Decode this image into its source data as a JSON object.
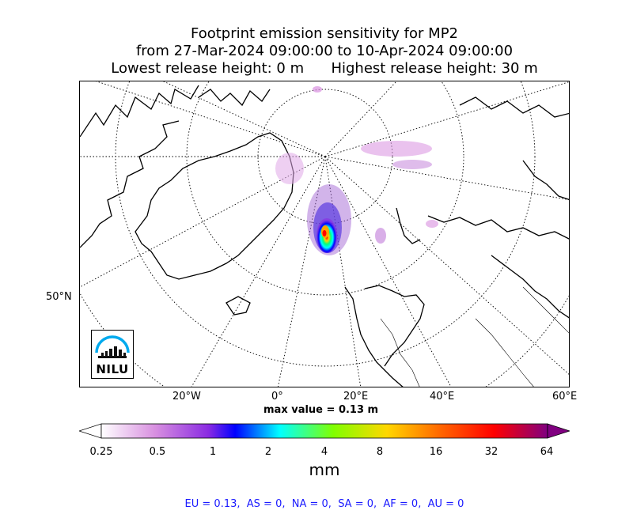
{
  "title": {
    "line1": "Footprint emission sensitivity for MP2",
    "line2": "from 27-Mar-2024 09:00:00 to 10-Apr-2024 09:00:00",
    "line3": "Lowest release height: 0 m      Highest release height: 30 m"
  },
  "map": {
    "projection": "north-polar-stereographic",
    "lon_labels": [
      "20°W",
      "0°",
      "20°E",
      "40°E",
      "60°E"
    ],
    "lat_labels": [
      "50°N"
    ],
    "grid_style": "dotted",
    "plume_location": "Svalbard / Barents Sea region"
  },
  "max_value": "max value = 0.13 m",
  "colorbar": {
    "ticks": [
      "0.25",
      "0.5",
      "1",
      "2",
      "4",
      "8",
      "16",
      "32",
      "64"
    ],
    "unit": "mm",
    "colors": [
      "#ffffff",
      "#d890e0",
      "#8a2be2",
      "#0000ff",
      "#00ffff",
      "#80ff00",
      "#ffd700",
      "#ff6600",
      "#ff0000",
      "#800080"
    ]
  },
  "region_totals": "EU = 0.13,  AS = 0,  NA = 0,  SA = 0,  AF = 0,  AU = 0",
  "logo": {
    "text": "NILU"
  }
}
